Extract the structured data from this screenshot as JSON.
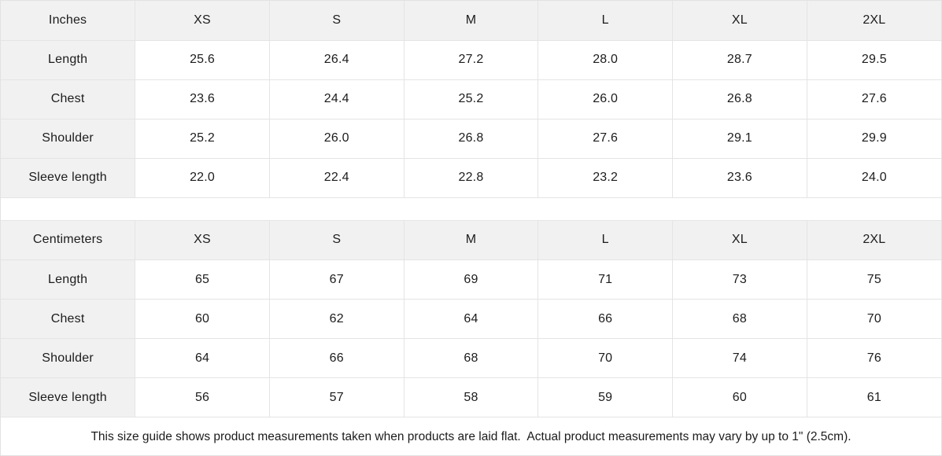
{
  "colors": {
    "header_bg": "#f1f1f1",
    "cell_bg": "#ffffff",
    "border": "#e4e4e4",
    "text": "#1c1c1c"
  },
  "tables": [
    {
      "unit_label": "Inches",
      "sizes": [
        "XS",
        "S",
        "M",
        "L",
        "XL",
        "2XL"
      ],
      "rows": [
        {
          "label": "Length",
          "values": [
            "25.6",
            "26.4",
            "27.2",
            "28.0",
            "28.7",
            "29.5"
          ]
        },
        {
          "label": "Chest",
          "values": [
            "23.6",
            "24.4",
            "25.2",
            "26.0",
            "26.8",
            "27.6"
          ]
        },
        {
          "label": "Shoulder",
          "values": [
            "25.2",
            "26.0",
            "26.8",
            "27.6",
            "29.1",
            "29.9"
          ]
        },
        {
          "label": "Sleeve length",
          "values": [
            "22.0",
            "22.4",
            "22.8",
            "23.2",
            "23.6",
            "24.0"
          ]
        }
      ]
    },
    {
      "unit_label": "Centimeters",
      "sizes": [
        "XS",
        "S",
        "M",
        "L",
        "XL",
        "2XL"
      ],
      "rows": [
        {
          "label": "Length",
          "values": [
            "65",
            "67",
            "69",
            "71",
            "73",
            "75"
          ]
        },
        {
          "label": "Chest",
          "values": [
            "60",
            "62",
            "64",
            "66",
            "68",
            "70"
          ]
        },
        {
          "label": "Shoulder",
          "values": [
            "64",
            "66",
            "68",
            "70",
            "74",
            "76"
          ]
        },
        {
          "label": "Sleeve length",
          "values": [
            "56",
            "57",
            "58",
            "59",
            "60",
            "61"
          ]
        }
      ]
    }
  ],
  "footer_note": "This size guide shows product measurements taken when products are laid flat.  Actual product measurements may vary by up to 1\" (2.5cm)."
}
